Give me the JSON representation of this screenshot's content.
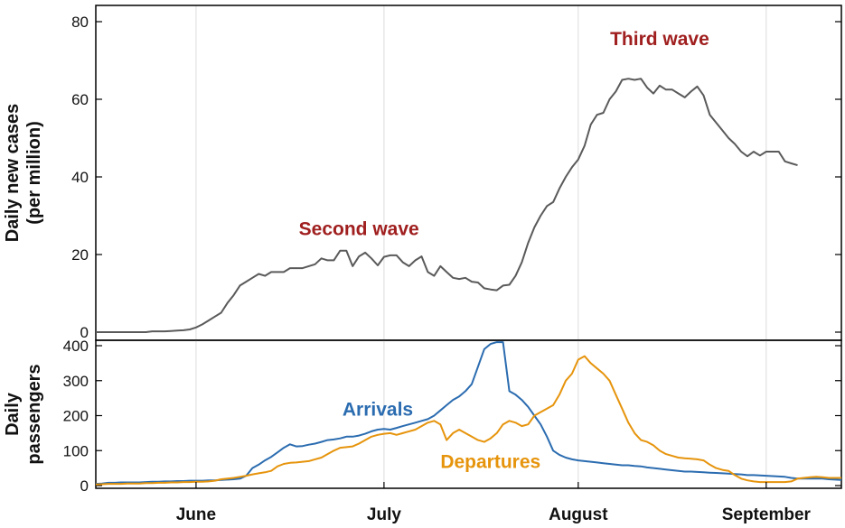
{
  "colors": {
    "cases_line": "#5a5a5a",
    "arrivals": "#2b6cb0",
    "departures": "#e6940c",
    "wave_label": "#a01f1f",
    "grid": "#dcdcdc",
    "axis": "#000000"
  },
  "chart_data": [
    {
      "type": "line",
      "ylabel_lines": [
        "Daily new cases",
        "(per million)"
      ],
      "ylim": [
        0,
        85
      ],
      "yticks": [
        0,
        20,
        40,
        60,
        80
      ],
      "xlim": [
        0,
        119
      ],
      "annotations": [
        {
          "text": "Second wave",
          "x": 42,
          "y": 25,
          "color_key": "wave_label"
        },
        {
          "text": "Third wave",
          "x": 90,
          "y": 74,
          "color_key": "wave_label"
        }
      ],
      "series": [
        {
          "color_key": "cases_line",
          "values": [
            0,
            0,
            0,
            0,
            0,
            0,
            0,
            0,
            0,
            0.2,
            0.2,
            0.2,
            0.3,
            0.4,
            0.5,
            0.7,
            1.2,
            2,
            3,
            4,
            5,
            7.5,
            9.5,
            12,
            13,
            14,
            15,
            14.5,
            15.5,
            15.5,
            15.5,
            16.5,
            16.5,
            16.5,
            17,
            17.5,
            19,
            18.5,
            18.5,
            21,
            21,
            17,
            19.5,
            20.5,
            19,
            17.2,
            19.4,
            19.8,
            19.8,
            18,
            17,
            18.5,
            19.5,
            15.5,
            14.5,
            17,
            15.5,
            14,
            13.7,
            14,
            13,
            12.8,
            11.3,
            11,
            10.8,
            12,
            12.2,
            14.5,
            18,
            23,
            27,
            30,
            32.5,
            33.5,
            37,
            40,
            42.5,
            44.5,
            48,
            53.5,
            56,
            56.5,
            60,
            62,
            65,
            65.3,
            65,
            65.3,
            63,
            61.5,
            63.5,
            62.5,
            62.5,
            61.5,
            60.5,
            62,
            63.3,
            61,
            56,
            54,
            52,
            50,
            48.5,
            46.5,
            45.3,
            46.5,
            45.5,
            46.5,
            46.5,
            46.5,
            44,
            43.5,
            43
          ]
        }
      ]
    },
    {
      "type": "line",
      "ylabel_lines": [
        "Daily",
        "passengers"
      ],
      "ylim": [
        0,
        410
      ],
      "yticks": [
        0,
        100,
        200,
        300,
        400
      ],
      "xlim": [
        0,
        119
      ],
      "x_month_ticks": [
        {
          "label": "June",
          "x": 16
        },
        {
          "label": "July",
          "x": 46
        },
        {
          "label": "August",
          "x": 77
        },
        {
          "label": "September",
          "x": 107
        }
      ],
      "annotations": [
        {
          "text": "Arrivals",
          "x": 45,
          "y": 200,
          "color_key": "arrivals"
        },
        {
          "text": "Departures",
          "x": 63,
          "y": 50,
          "color_key": "departures"
        }
      ],
      "series": [
        {
          "name": "Arrivals",
          "color_key": "arrivals",
          "values": [
            5,
            6,
            8,
            8,
            9,
            9,
            9,
            9,
            10,
            11,
            11,
            12,
            12,
            13,
            13,
            14,
            14,
            14,
            15,
            15,
            16,
            17,
            18,
            20,
            28,
            50,
            60,
            72,
            82,
            95,
            108,
            118,
            112,
            113,
            117,
            120,
            125,
            130,
            132,
            135,
            140,
            140,
            143,
            148,
            155,
            160,
            162,
            160,
            165,
            170,
            175,
            180,
            185,
            190,
            200,
            215,
            230,
            245,
            255,
            270,
            290,
            340,
            390,
            405,
            410,
            410,
            270,
            260,
            245,
            225,
            200,
            175,
            140,
            100,
            88,
            80,
            75,
            72,
            70,
            68,
            66,
            64,
            62,
            60,
            58,
            58,
            56,
            55,
            52,
            50,
            48,
            46,
            44,
            42,
            40,
            40,
            39,
            38,
            37,
            36,
            35,
            34,
            33,
            32,
            30,
            30,
            29,
            28,
            27,
            26,
            25,
            22,
            20,
            20,
            20,
            20,
            20,
            18,
            17,
            16
          ]
        },
        {
          "name": "Departures",
          "color_key": "departures",
          "values": [
            3,
            4,
            5,
            5,
            5,
            6,
            6,
            6,
            7,
            7,
            8,
            8,
            9,
            9,
            10,
            10,
            11,
            11,
            12,
            14,
            18,
            20,
            22,
            25,
            28,
            32,
            35,
            38,
            42,
            55,
            62,
            65,
            66,
            68,
            70,
            75,
            80,
            90,
            100,
            108,
            110,
            112,
            120,
            130,
            140,
            145,
            148,
            150,
            145,
            150,
            155,
            160,
            170,
            180,
            185,
            175,
            130,
            150,
            160,
            150,
            140,
            130,
            125,
            135,
            150,
            175,
            185,
            180,
            170,
            175,
            200,
            210,
            220,
            230,
            260,
            300,
            320,
            360,
            370,
            350,
            335,
            320,
            300,
            260,
            220,
            180,
            150,
            130,
            125,
            115,
            100,
            90,
            85,
            80,
            78,
            77,
            75,
            72,
            60,
            50,
            45,
            42,
            30,
            20,
            15,
            12,
            10,
            10,
            10,
            10,
            10,
            12,
            20,
            22,
            24,
            25,
            24,
            22,
            22,
            22
          ]
        }
      ]
    }
  ]
}
